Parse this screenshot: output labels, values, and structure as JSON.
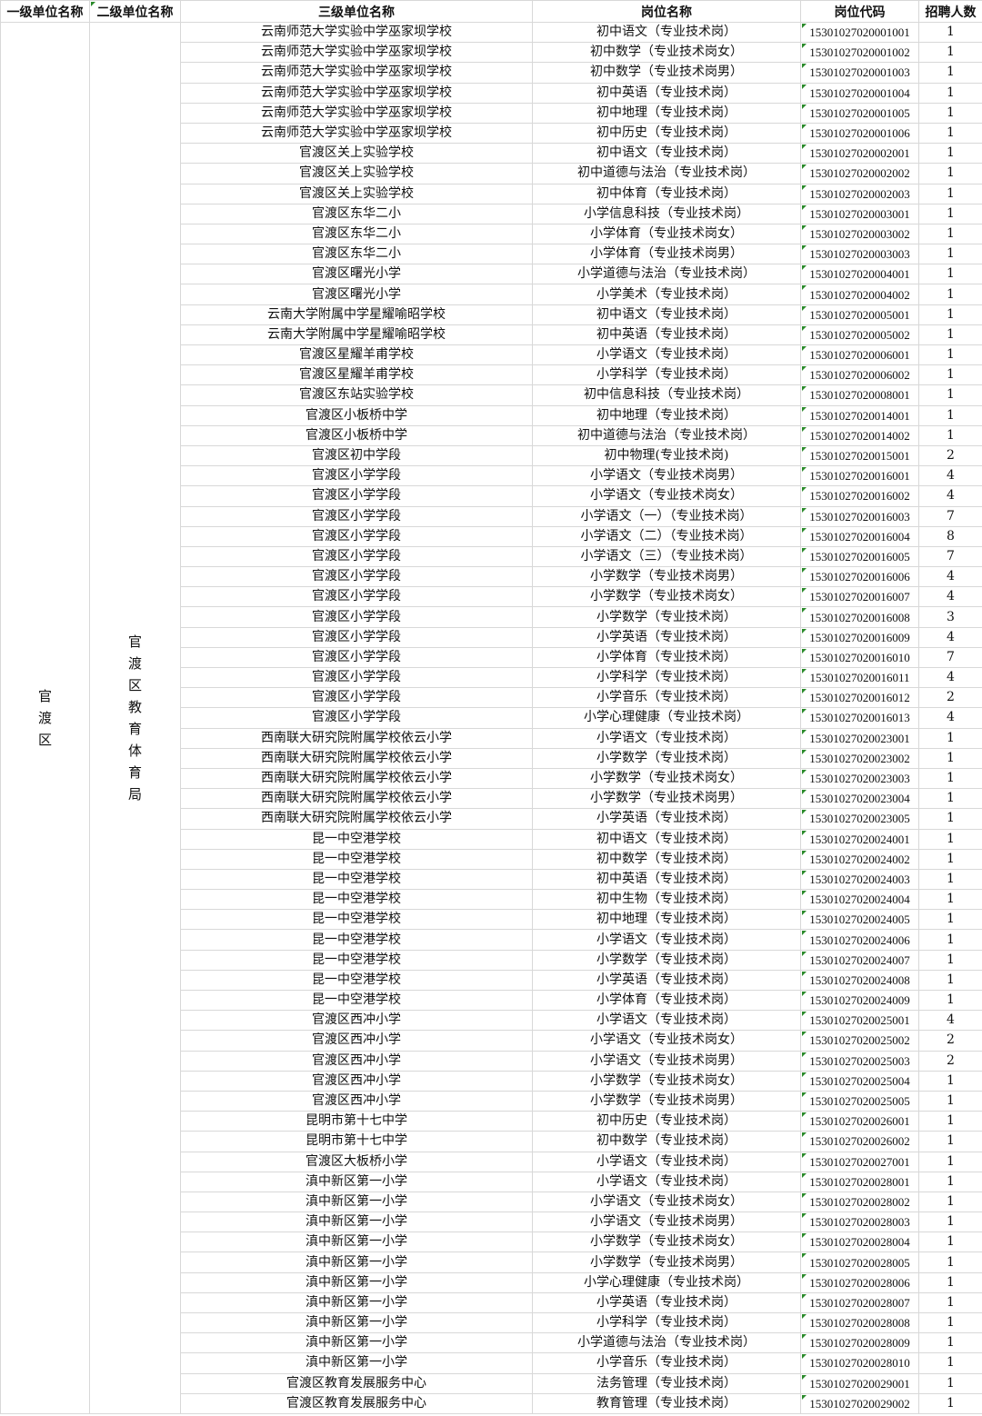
{
  "headers": [
    "一级单位名称",
    "二级单位名称",
    "三级单位名称",
    "岗位名称",
    "岗位代码",
    "招聘人数"
  ],
  "level1": "官渡区",
  "level2": "官渡区教育体育局",
  "rows": [
    [
      "云南师范大学实验中学巫家坝学校",
      "初中语文（专业技术岗）",
      "15301027020001001",
      "1"
    ],
    [
      "云南师范大学实验中学巫家坝学校",
      "初中数学（专业技术岗女）",
      "15301027020001002",
      "1"
    ],
    [
      "云南师范大学实验中学巫家坝学校",
      "初中数学（专业技术岗男）",
      "15301027020001003",
      "1"
    ],
    [
      "云南师范大学实验中学巫家坝学校",
      "初中英语（专业技术岗）",
      "15301027020001004",
      "1"
    ],
    [
      "云南师范大学实验中学巫家坝学校",
      "初中地理（专业技术岗）",
      "15301027020001005",
      "1"
    ],
    [
      "云南师范大学实验中学巫家坝学校",
      "初中历史（专业技术岗）",
      "15301027020001006",
      "1"
    ],
    [
      "官渡区关上实验学校",
      "初中语文（专业技术岗）",
      "15301027020002001",
      "1"
    ],
    [
      "官渡区关上实验学校",
      "初中道德与法治（专业技术岗）",
      "15301027020002002",
      "1"
    ],
    [
      "官渡区关上实验学校",
      "初中体育（专业技术岗）",
      "15301027020002003",
      "1"
    ],
    [
      "官渡区东华二小",
      "小学信息科技（专业技术岗）",
      "15301027020003001",
      "1"
    ],
    [
      "官渡区东华二小",
      "小学体育（专业技术岗女）",
      "15301027020003002",
      "1"
    ],
    [
      "官渡区东华二小",
      "小学体育（专业技术岗男）",
      "15301027020003003",
      "1"
    ],
    [
      "官渡区曙光小学",
      "小学道德与法治（专业技术岗）",
      "15301027020004001",
      "1"
    ],
    [
      "官渡区曙光小学",
      "小学美术（专业技术岗）",
      "15301027020004002",
      "1"
    ],
    [
      "云南大学附属中学星耀喻昭学校",
      "初中语文（专业技术岗）",
      "15301027020005001",
      "1"
    ],
    [
      "云南大学附属中学星耀喻昭学校",
      "初中英语（专业技术岗）",
      "15301027020005002",
      "1"
    ],
    [
      "官渡区星耀羊甫学校",
      "小学语文（专业技术岗）",
      "15301027020006001",
      "1"
    ],
    [
      "官渡区星耀羊甫学校",
      "小学科学（专业技术岗）",
      "15301027020006002",
      "1"
    ],
    [
      "官渡区东站实验学校",
      "初中信息科技（专业技术岗）",
      "15301027020008001",
      "1"
    ],
    [
      "官渡区小板桥中学",
      "初中地理（专业技术岗）",
      "15301027020014001",
      "1"
    ],
    [
      "官渡区小板桥中学",
      "初中道德与法治（专业技术岗）",
      "15301027020014002",
      "1"
    ],
    [
      "官渡区初中学段",
      "初中物理(专业技术岗)",
      "15301027020015001",
      "2"
    ],
    [
      "官渡区小学学段",
      "小学语文（专业技术岗男）",
      "15301027020016001",
      "4"
    ],
    [
      "官渡区小学学段",
      "小学语文（专业技术岗女）",
      "15301027020016002",
      "4"
    ],
    [
      "官渡区小学学段",
      "小学语文（一）（专业技术岗）",
      "15301027020016003",
      "7"
    ],
    [
      "官渡区小学学段",
      "小学语文（二）（专业技术岗）",
      "15301027020016004",
      "8"
    ],
    [
      "官渡区小学学段",
      "小学语文（三）（专业技术岗）",
      "15301027020016005",
      "7"
    ],
    [
      "官渡区小学学段",
      "小学数学（专业技术岗男）",
      "15301027020016006",
      "4"
    ],
    [
      "官渡区小学学段",
      "小学数学（专业技术岗女）",
      "15301027020016007",
      "4"
    ],
    [
      "官渡区小学学段",
      "小学数学（专业技术岗）",
      "15301027020016008",
      "3"
    ],
    [
      "官渡区小学学段",
      "小学英语（专业技术岗）",
      "15301027020016009",
      "4"
    ],
    [
      "官渡区小学学段",
      "小学体育（专业技术岗）",
      "15301027020016010",
      "7"
    ],
    [
      "官渡区小学学段",
      "小学科学（专业技术岗）",
      "15301027020016011",
      "4"
    ],
    [
      "官渡区小学学段",
      "小学音乐（专业技术岗）",
      "15301027020016012",
      "2"
    ],
    [
      "官渡区小学学段",
      "小学心理健康（专业技术岗）",
      "15301027020016013",
      "4"
    ],
    [
      "西南联大研究院附属学校依云小学",
      "小学语文（专业技术岗）",
      "15301027020023001",
      "1"
    ],
    [
      "西南联大研究院附属学校依云小学",
      "小学数学（专业技术岗）",
      "15301027020023002",
      "1"
    ],
    [
      "西南联大研究院附属学校依云小学",
      "小学数学（专业技术岗女）",
      "15301027020023003",
      "1"
    ],
    [
      "西南联大研究院附属学校依云小学",
      "小学数学（专业技术岗男）",
      "15301027020023004",
      "1"
    ],
    [
      "西南联大研究院附属学校依云小学",
      "小学英语（专业技术岗）",
      "15301027020023005",
      "1"
    ],
    [
      "昆一中空港学校",
      "初中语文（专业技术岗）",
      "15301027020024001",
      "1"
    ],
    [
      "昆一中空港学校",
      "初中数学（专业技术岗）",
      "15301027020024002",
      "1"
    ],
    [
      "昆一中空港学校",
      "初中英语（专业技术岗）",
      "15301027020024003",
      "1"
    ],
    [
      "昆一中空港学校",
      "初中生物（专业技术岗）",
      "15301027020024004",
      "1"
    ],
    [
      "昆一中空港学校",
      "初中地理（专业技术岗）",
      "15301027020024005",
      "1"
    ],
    [
      "昆一中空港学校",
      "小学语文（专业技术岗）",
      "15301027020024006",
      "1"
    ],
    [
      "昆一中空港学校",
      "小学数学（专业技术岗）",
      "15301027020024007",
      "1"
    ],
    [
      "昆一中空港学校",
      "小学英语（专业技术岗）",
      "15301027020024008",
      "1"
    ],
    [
      "昆一中空港学校",
      "小学体育（专业技术岗）",
      "15301027020024009",
      "1"
    ],
    [
      "官渡区西冲小学",
      "小学语文（专业技术岗）",
      "15301027020025001",
      "4"
    ],
    [
      "官渡区西冲小学",
      "小学语文（专业技术岗女）",
      "15301027020025002",
      "2"
    ],
    [
      "官渡区西冲小学",
      "小学语文（专业技术岗男）",
      "15301027020025003",
      "2"
    ],
    [
      "官渡区西冲小学",
      "小学数学（专业技术岗女）",
      "15301027020025004",
      "1"
    ],
    [
      "官渡区西冲小学",
      "小学数学（专业技术岗男）",
      "15301027020025005",
      "1"
    ],
    [
      "昆明市第十七中学",
      "初中历史（专业技术岗）",
      "15301027020026001",
      "1"
    ],
    [
      "昆明市第十七中学",
      "初中数学（专业技术岗）",
      "15301027020026002",
      "1"
    ],
    [
      "官渡区大板桥小学",
      "小学语文（专业技术岗）",
      "15301027020027001",
      "1"
    ],
    [
      "滇中新区第一小学",
      "小学语文（专业技术岗）",
      "15301027020028001",
      "1"
    ],
    [
      "滇中新区第一小学",
      "小学语文（专业技术岗女）",
      "15301027020028002",
      "1"
    ],
    [
      "滇中新区第一小学",
      "小学语文（专业技术岗男）",
      "15301027020028003",
      "1"
    ],
    [
      "滇中新区第一小学",
      "小学数学（专业技术岗女）",
      "15301027020028004",
      "1"
    ],
    [
      "滇中新区第一小学",
      "小学数学（专业技术岗男）",
      "15301027020028005",
      "1"
    ],
    [
      "滇中新区第一小学",
      "小学心理健康（专业技术岗）",
      "15301027020028006",
      "1"
    ],
    [
      "滇中新区第一小学",
      "小学英语（专业技术岗）",
      "15301027020028007",
      "1"
    ],
    [
      "滇中新区第一小学",
      "小学科学（专业技术岗）",
      "15301027020028008",
      "1"
    ],
    [
      "滇中新区第一小学",
      "小学道德与法治（专业技术岗）",
      "15301027020028009",
      "1"
    ],
    [
      "滇中新区第一小学",
      "小学音乐（专业技术岗）",
      "15301027020028010",
      "1"
    ],
    [
      "官渡区教育发展服务中心",
      "法务管理（专业技术岗）",
      "15301027020029001",
      "1"
    ],
    [
      "官渡区教育发展服务中心",
      "教育管理（专业技术岗）",
      "15301027020029002",
      "1"
    ]
  ]
}
